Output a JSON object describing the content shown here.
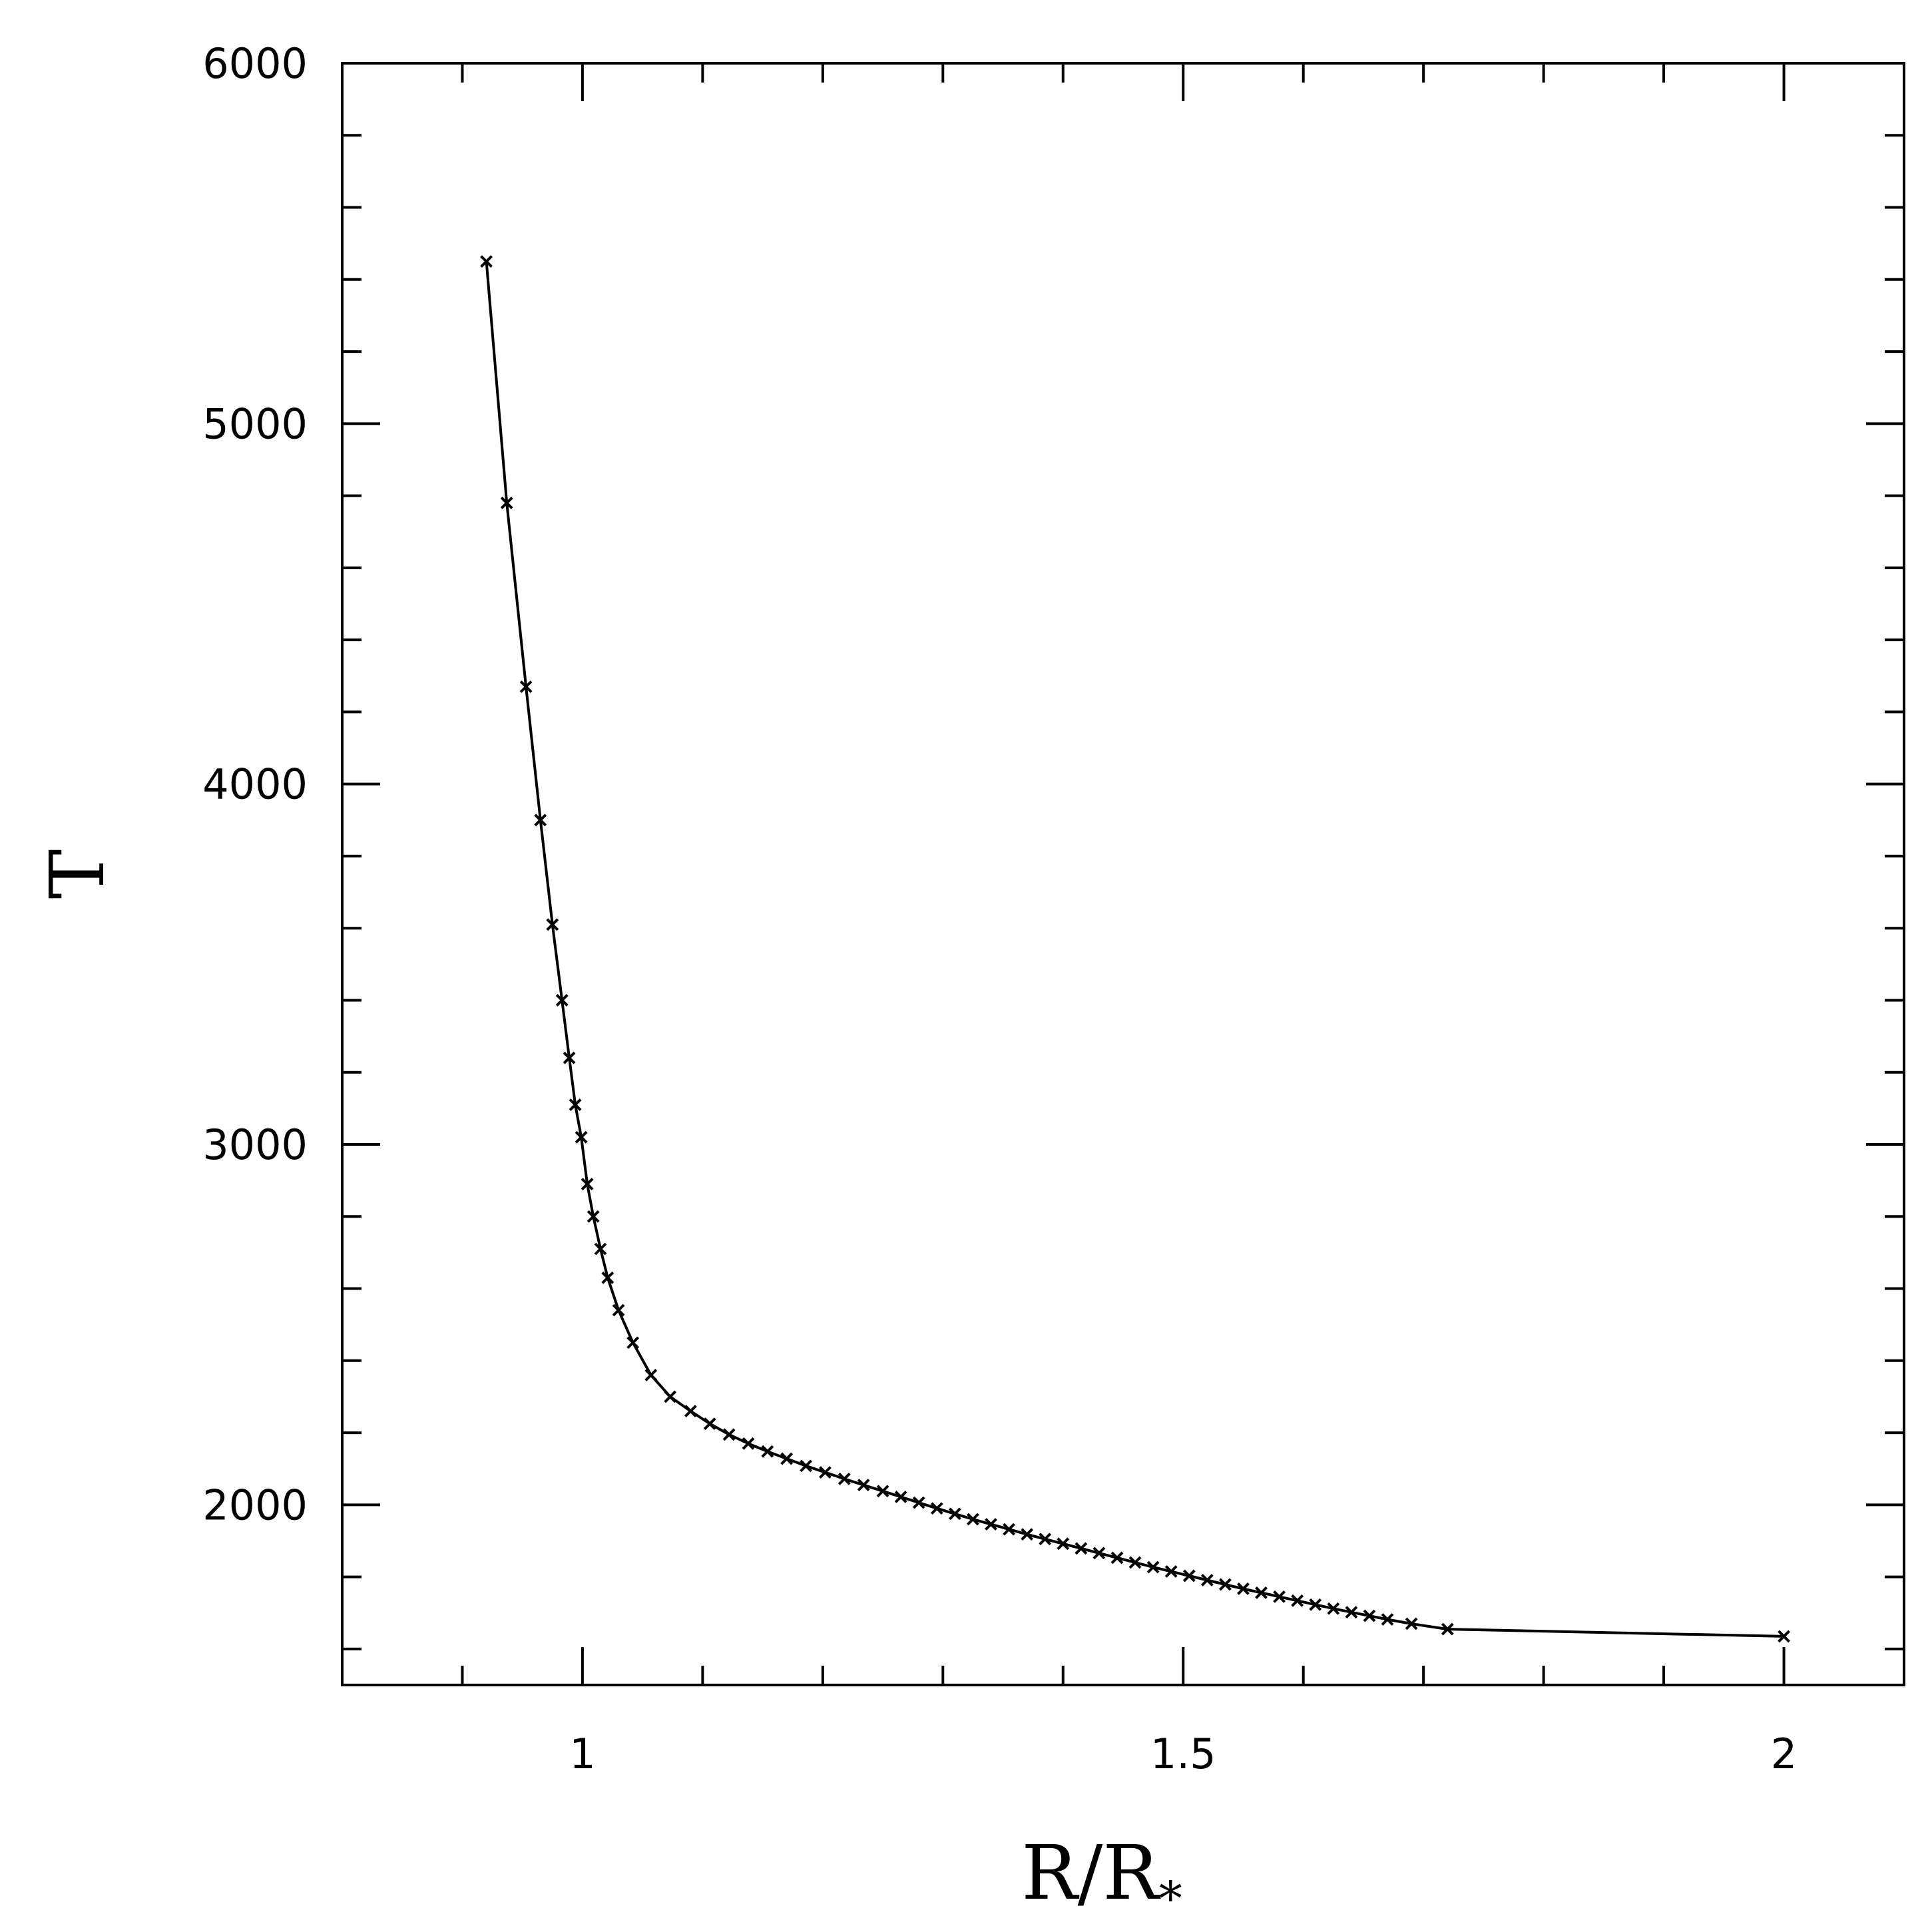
{
  "chart_data": {
    "type": "line",
    "title": "",
    "xlabel": "R/R",
    "xlabel_subscript": "*",
    "ylabel": "T",
    "xlim": [
      0.8,
      2.1
    ],
    "ylim": [
      1500,
      6000
    ],
    "x_ticks": [
      1,
      1.5,
      2
    ],
    "x_tick_labels": [
      "1",
      "1.5",
      "2"
    ],
    "y_ticks": [
      2000,
      3000,
      4000,
      5000,
      6000
    ],
    "y_tick_labels": [
      "2000",
      "3000",
      "4000",
      "5000",
      "6000"
    ],
    "x_minor_step": 0.1,
    "y_minor_step": 200,
    "grid": false,
    "legend": "none",
    "line_color": "#000000",
    "marker": "x",
    "series": [
      {
        "x": [
          0.92,
          0.937,
          0.953,
          0.965,
          0.975,
          0.983,
          0.989,
          0.994,
          0.999,
          1.004,
          1.009,
          1.015,
          1.021,
          1.03,
          1.042,
          1.057,
          1.073,
          1.09,
          1.106,
          1.122,
          1.138,
          1.154,
          1.17,
          1.186,
          1.202,
          1.218,
          1.234,
          1.25,
          1.265,
          1.28,
          1.295,
          1.31,
          1.325,
          1.34,
          1.355,
          1.37,
          1.385,
          1.4,
          1.415,
          1.43,
          1.445,
          1.46,
          1.475,
          1.49,
          1.505,
          1.52,
          1.535,
          1.55,
          1.565,
          1.58,
          1.595,
          1.61,
          1.625,
          1.64,
          1.655,
          1.67,
          1.69,
          1.72,
          2.0
        ],
        "y": [
          5450,
          4780,
          4270,
          3900,
          3610,
          3400,
          3240,
          3110,
          3020,
          2890,
          2800,
          2710,
          2630,
          2540,
          2450,
          2360,
          2300,
          2260,
          2225,
          2195,
          2170,
          2148,
          2128,
          2108,
          2090,
          2072,
          2055,
          2038,
          2022,
          2006,
          1990,
          1975,
          1960,
          1946,
          1932,
          1918,
          1905,
          1892,
          1879,
          1866,
          1853,
          1840,
          1827,
          1815,
          1803,
          1791,
          1779,
          1767,
          1756,
          1745,
          1734,
          1723,
          1712,
          1702,
          1692,
          1682,
          1670,
          1655,
          1635
        ]
      }
    ]
  }
}
